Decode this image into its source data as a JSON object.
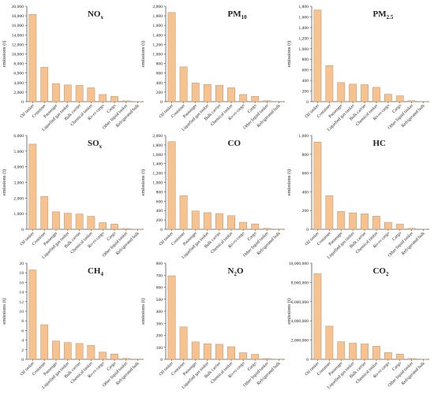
{
  "chart_data": [
    {
      "type": "bar",
      "title": "NO",
      "title_sub": "x",
      "ylabel": "emissions (t)",
      "ylim": [
        0,
        20000
      ],
      "yticks": [
        0,
        2000,
        4000,
        6000,
        8000,
        10000,
        12000,
        14000,
        16000,
        18000,
        20000
      ],
      "tick_labels": [
        "0",
        "2,000",
        "4,000",
        "6,000",
        "8,000",
        "10,000",
        "12,000",
        "14,000",
        "16,000",
        "18,000",
        "20,000"
      ],
      "categories": [
        "Oil tanker",
        "Container",
        "Passenger",
        "Liquefied gas tanker",
        "Bulk carrier",
        "Chemical tanker",
        "Ro-ro cargo",
        "Cargo",
        "Other liquid tanker",
        "Refrigerated bulk"
      ],
      "values": [
        18300,
        7200,
        3800,
        3500,
        3400,
        2900,
        1500,
        1100,
        180,
        20
      ]
    },
    {
      "type": "bar",
      "title": "PM",
      "title_sub": "10",
      "ylabel": "emissions (t)",
      "ylim": [
        0,
        2000
      ],
      "yticks": [
        0,
        200,
        400,
        600,
        800,
        1000,
        1200,
        1400,
        1600,
        1800,
        2000
      ],
      "tick_labels": [
        "0",
        "200",
        "400",
        "600",
        "800",
        "1,000",
        "1,200",
        "1,400",
        "1,600",
        "1,800",
        "2,000"
      ],
      "categories": [
        "Oil tanker",
        "Container",
        "Passenger",
        "Liquefied gas tanker",
        "Bulk carrier",
        "Chemical tanker",
        "Ro-ro cargo",
        "Cargo",
        "Other liquid tanker",
        "Refrigerated bulk"
      ],
      "values": [
        1870,
        730,
        390,
        360,
        340,
        290,
        150,
        110,
        20,
        5
      ]
    },
    {
      "type": "bar",
      "title": "PM",
      "title_sub": "2.5",
      "ylabel": "emissions (t)",
      "ylim": [
        0,
        1800
      ],
      "yticks": [
        0,
        200,
        400,
        600,
        800,
        1000,
        1200,
        1400,
        1600,
        1800
      ],
      "tick_labels": [
        "0",
        "200",
        "400",
        "600",
        "800",
        "1,000",
        "1,200",
        "1,400",
        "1,600",
        "1,800"
      ],
      "categories": [
        "Oil tanker",
        "Container",
        "Passenger",
        "Liquefied gas tanker",
        "Bulk carrier",
        "Chemical tanker",
        "Ro-ro cargo",
        "Cargo",
        "Other liquid tanker",
        "Refrigerated bulk"
      ],
      "values": [
        1730,
        680,
        360,
        330,
        320,
        270,
        140,
        110,
        18,
        4
      ]
    },
    {
      "type": "bar",
      "title": "SO",
      "title_sub": "x",
      "ylabel": "emissions (t)",
      "ylim": [
        0,
        6000
      ],
      "yticks": [
        0,
        1000,
        2000,
        3000,
        4000,
        5000,
        6000
      ],
      "tick_labels": [
        "0",
        "1,000",
        "2,000",
        "3,000",
        "4,000",
        "5,000",
        "6,000"
      ],
      "categories": [
        "Oil tanker",
        "Container",
        "Passenger",
        "Liquefied gas tanker",
        "Bulk carrier",
        "Chemical tanker",
        "Ro-ro cargo",
        "Cargo",
        "Other liquid tanker",
        "Refrigerated bulk"
      ],
      "values": [
        5450,
        2100,
        1120,
        1030,
        980,
        830,
        430,
        330,
        50,
        10
      ]
    },
    {
      "type": "bar",
      "title": "CO",
      "title_sub": "",
      "ylabel": "emissions (t)",
      "ylim": [
        0,
        2000
      ],
      "yticks": [
        0,
        200,
        400,
        600,
        800,
        1000,
        1200,
        1400,
        1600,
        1800,
        2000
      ],
      "tick_labels": [
        "0",
        "200",
        "400",
        "600",
        "800",
        "1,000",
        "1,200",
        "1,400",
        "1,600",
        "1,800",
        "2,000"
      ],
      "categories": [
        "Oil tanker",
        "Container",
        "Passenger",
        "Liquefied gas tanker",
        "Bulk carrier",
        "Chemical tanker",
        "Ro-ro cargo",
        "Cargo",
        "Other liquid tanker",
        "Refrigerated bulk"
      ],
      "values": [
        1870,
        720,
        390,
        355,
        335,
        290,
        150,
        115,
        20,
        5
      ]
    },
    {
      "type": "bar",
      "title": "HC",
      "title_sub": "",
      "ylabel": "emissions (t)",
      "ylim": [
        0,
        1000
      ],
      "yticks": [
        0,
        200,
        400,
        600,
        800,
        1000
      ],
      "tick_labels": [
        "0",
        "200",
        "400",
        "600",
        "800",
        "1,000"
      ],
      "categories": [
        "Oil tanker",
        "Container",
        "Passenger",
        "Liquefied gas tanker",
        "Bulk carrier",
        "Chemical tanker",
        "Ro-ro cargo",
        "Cargo",
        "Other liquid tanker",
        "Refrigerated bulk"
      ],
      "values": [
        930,
        360,
        190,
        175,
        165,
        140,
        75,
        55,
        10,
        2
      ]
    },
    {
      "type": "bar",
      "title": "CH",
      "title_sub": "4",
      "ylabel": "emissions (t)",
      "ylim": [
        0,
        20
      ],
      "yticks": [
        0,
        2,
        4,
        6,
        8,
        10,
        12,
        14,
        16,
        18,
        20
      ],
      "tick_labels": [
        "0",
        "2",
        "4",
        "6",
        "8",
        "10",
        "12",
        "14",
        "16",
        "18",
        "20"
      ],
      "categories": [
        "Oil tanker",
        "Container",
        "Passenger",
        "Liquefied gas tanker",
        "Bulk carrier",
        "Chemical tanker",
        "Ro-ro cargo",
        "Cargo",
        "Other liquid tanker",
        "Refrigerated bulk"
      ],
      "values": [
        18.6,
        7.2,
        3.8,
        3.5,
        3.3,
        2.9,
        1.5,
        1.1,
        0.2,
        0.05
      ]
    },
    {
      "type": "bar",
      "title": "N",
      "title_sub": "2",
      "title_tail": "O",
      "ylabel": "emissions (t)",
      "ylim": [
        0,
        800
      ],
      "yticks": [
        0,
        100,
        200,
        300,
        400,
        500,
        600,
        700,
        800
      ],
      "tick_labels": [
        "0",
        "100",
        "200",
        "300",
        "400",
        "500",
        "600",
        "700",
        "800"
      ],
      "categories": [
        "Oil tanker",
        "Container",
        "Passenger",
        "Liquefied gas tanker",
        "Bulk carrier",
        "Chemical tanker",
        "Ro-ro cargo",
        "Cargo",
        "Other liquid tanker",
        "Refrigerated bulk"
      ],
      "values": [
        695,
        270,
        145,
        130,
        125,
        105,
        55,
        42,
        7,
        2
      ]
    },
    {
      "type": "bar",
      "title": "CO",
      "title_sub": "2",
      "ylabel": "emissions (t)",
      "ylim": [
        0,
        10000000
      ],
      "yticks": [
        0,
        2000000,
        4000000,
        6000000,
        8000000,
        10000000
      ],
      "tick_labels": [
        "0",
        "2,000,000",
        "4,000,000",
        "6,000,000",
        "8,000,000",
        "10,000,000"
      ],
      "categories": [
        "Oil tanker",
        "Container",
        "Passenger",
        "Liquefied gas tanker",
        "Bulk carrier",
        "Chemical tanker",
        "Ro-ro cargo",
        "Cargo",
        "Other liquid tanker",
        "Refrigerated bulk"
      ],
      "values": [
        8900000,
        3450000,
        1830000,
        1680000,
        1600000,
        1360000,
        700000,
        540000,
        90000,
        20000
      ]
    }
  ]
}
